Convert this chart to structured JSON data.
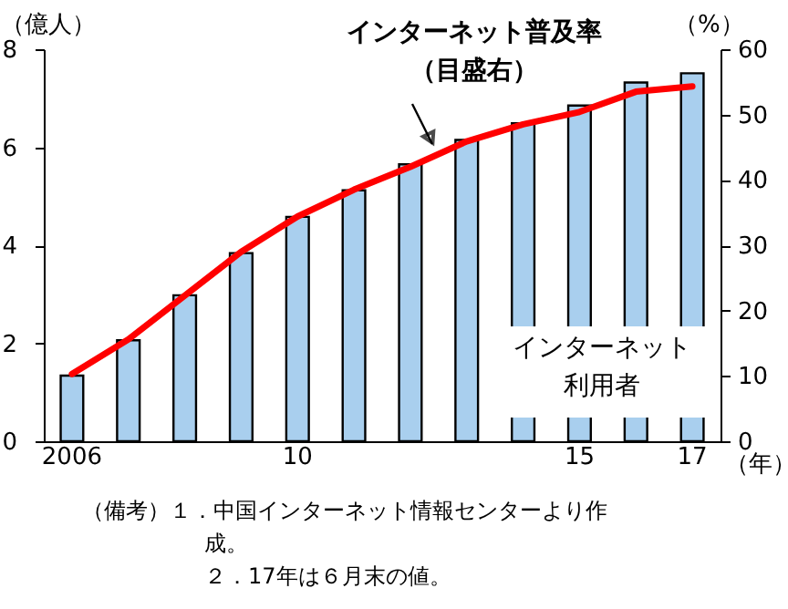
{
  "chart_data": {
    "type": "bar",
    "categories": [
      "2006",
      null,
      null,
      null,
      "10",
      null,
      null,
      null,
      null,
      "15",
      null,
      "17"
    ],
    "xlabel": "（年）",
    "ylabel": "（億人）",
    "y2label": "（%）",
    "ylim": [
      0,
      8
    ],
    "yticks": [
      0,
      2,
      4,
      6,
      8
    ],
    "y2lim": [
      0,
      60
    ],
    "y2ticks": [
      0,
      10,
      20,
      30,
      40,
      50,
      60
    ],
    "grid": false,
    "legend": false,
    "series": [
      {
        "name": "インターネット利用者",
        "color": "#a9cfee",
        "values": [
          1.34,
          2.06,
          2.98,
          3.84,
          4.58,
          5.12,
          5.65,
          6.15,
          6.49,
          6.85,
          7.32,
          7.51
        ]
      },
      {
        "name": "インターネット普及率（目盛右）",
        "type": "line",
        "axis": "y2",
        "color": "#ff0000",
        "values": [
          10.3,
          15.6,
          22.3,
          29.0,
          34.4,
          38.5,
          42.0,
          45.9,
          48.5,
          50.4,
          53.5,
          54.3
        ]
      }
    ],
    "annotations": [
      "（備考）１．中国インターネット情報センターより作成。",
      "２．17年は６月末の値。"
    ]
  }
}
